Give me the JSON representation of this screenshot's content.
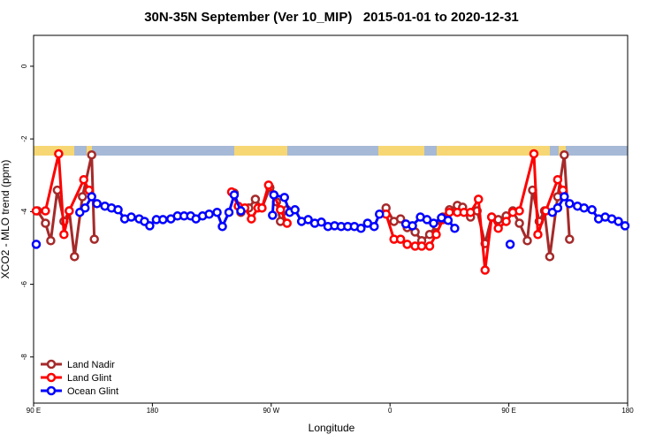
{
  "chart_data": {
    "type": "line",
    "title": "30N-35N September (Ver 10_MIP)   2015-01-01 to 2020-12-31",
    "x_label": "Longitude",
    "y_label": "XCO2 - MLO trend (ppm)",
    "xlim": [
      90,
      540
    ],
    "ylim": [
      -9.27,
      0.85
    ],
    "xticks": [
      {
        "value": 90,
        "label": "90 E"
      },
      180,
      {
        "value": 270,
        "label": "90 W"
      },
      {
        "value": 360,
        "label": "0"
      },
      {
        "value": 450,
        "label": "90 E"
      },
      {
        "value": 540,
        "label": "180"
      }
    ],
    "yticks": [
      0,
      -2,
      -4,
      -6,
      -8
    ],
    "legend": "bottom-left",
    "series": [
      {
        "name": "Land Nadir",
        "color": "#a52a2a",
        "x": [
          93,
          99,
          103,
          108,
          113,
          117,
          121,
          127,
          134,
          136,
          null,
          242,
          247,
          253,
          258,
          263,
          269,
          274,
          277,
          282,
          null,
          357,
          363,
          368,
          373,
          379,
          384,
          390,
          395,
          400,
          405,
          411,
          415,
          421,
          426,
          432,
          437,
          442,
          448,
          453,
          458,
          464,
          468,
          473,
          477,
          481,
          487,
          492,
          496
        ],
        "values": [
          -3.98,
          -4.32,
          -4.8,
          -3.41,
          -4.27,
          -3.98,
          -5.24,
          -3.59,
          -2.44,
          -4.76,
          null,
          -3.49,
          -4.02,
          -3.9,
          -3.66,
          -3.9,
          -3.34,
          -3.73,
          -4.27,
          -3.95,
          null,
          -3.9,
          -4.27,
          -4.2,
          -4.44,
          -4.56,
          -4.8,
          -4.63,
          -4.39,
          -4.15,
          -3.95,
          -3.83,
          -3.88,
          -4.15,
          -3.98,
          -4.88,
          -4.15,
          -4.22,
          -4.12,
          -3.98,
          -4.32,
          -4.8,
          -3.41,
          -4.27,
          -3.98,
          -5.24,
          -3.59,
          -2.44,
          -4.76
        ]
      },
      {
        "name": "Land Glint",
        "color": "#ff0000",
        "x": [
          92,
          99,
          109,
          113,
          117,
          128,
          132,
          null,
          240,
          245,
          250,
          255,
          260,
          263,
          268,
          272,
          277,
          282,
          null,
          357,
          363,
          368,
          373,
          379,
          384,
          390,
          395,
          400,
          405,
          411,
          416,
          421,
          427,
          432,
          437,
          442,
          448,
          453,
          458,
          469,
          472,
          478,
          487,
          491
        ],
        "values": [
          -3.98,
          -3.98,
          -2.41,
          -4.63,
          -3.98,
          -3.12,
          -3.41,
          null,
          -3.46,
          -3.85,
          -3.9,
          -4.2,
          -3.9,
          -3.9,
          -3.27,
          -3.54,
          -3.95,
          -4.32,
          null,
          -4.07,
          -4.76,
          -4.76,
          -4.9,
          -4.95,
          -4.95,
          -4.95,
          -4.63,
          -4.22,
          -4.02,
          -4.02,
          -4.02,
          -4.02,
          -3.66,
          -5.61,
          -4.15,
          -4.46,
          -4.27,
          -4.02,
          -3.98,
          -2.41,
          -4.63,
          -3.98,
          -3.12,
          -3.41
        ]
      },
      {
        "name": "Ocean Glint",
        "color": "#0000ff",
        "x": [
          92,
          null,
          125,
          129,
          134,
          138,
          144,
          149,
          154,
          159,
          164,
          170,
          174,
          178,
          183,
          188,
          194,
          199,
          204,
          209,
          213,
          218,
          223,
          229,
          233,
          238,
          242,
          247,
          null,
          271,
          272,
          280,
          284,
          288,
          293,
          298,
          303,
          308,
          313,
          318,
          323,
          328,
          333,
          338,
          343,
          348,
          352,
          null,
          372,
          377,
          383,
          388,
          393,
          399,
          404,
          409,
          null,
          451,
          null,
          483,
          487,
          492,
          496,
          502,
          507,
          513,
          518,
          523,
          528,
          533,
          538
        ],
        "values": [
          -4.9,
          null,
          -4.02,
          -3.9,
          -3.59,
          -3.78,
          -3.85,
          -3.9,
          -3.95,
          -4.2,
          -4.15,
          -4.2,
          -4.27,
          -4.39,
          -4.22,
          -4.22,
          -4.2,
          -4.12,
          -4.12,
          -4.12,
          -4.2,
          -4.12,
          -4.07,
          -4.02,
          -4.41,
          -4.02,
          -3.54,
          -3.98,
          null,
          -4.1,
          -3.54,
          -3.61,
          -4.02,
          -3.95,
          -4.27,
          -4.22,
          -4.32,
          -4.29,
          -4.41,
          -4.39,
          -4.41,
          -4.41,
          -4.41,
          -4.46,
          -4.32,
          -4.41,
          -4.07,
          null,
          -4.34,
          -4.39,
          -4.15,
          -4.22,
          -4.32,
          -4.17,
          -4.24,
          -4.46,
          null,
          -4.9,
          null,
          -4.02,
          -3.9,
          -3.59,
          -3.78,
          -3.85,
          -3.9,
          -3.95,
          -4.2,
          -4.15,
          -4.2,
          -4.27,
          -4.39
        ]
      }
    ]
  }
}
